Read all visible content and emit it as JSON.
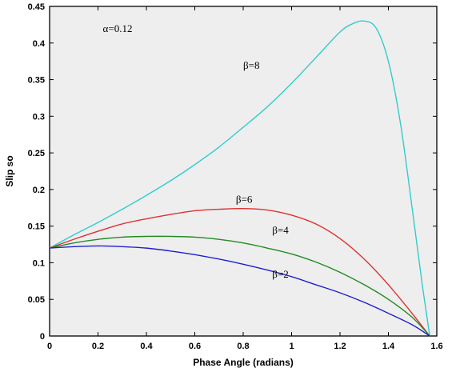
{
  "chart_data": {
    "type": "line",
    "title": "",
    "xlabel": "Phase Angle (radians)",
    "ylabel": "Slip so",
    "xlim": [
      0,
      1.6
    ],
    "ylim": [
      0,
      0.45
    ],
    "xticks": [
      "0",
      "0.2",
      "0.4",
      "0.6",
      "0.8",
      "1",
      "1.2",
      "1.4",
      "1.6"
    ],
    "yticks": [
      "0",
      "0.05",
      "0.1",
      "0.15",
      "0.2",
      "0.25",
      "0.3",
      "0.35",
      "0.4",
      "0.45"
    ],
    "grid": false,
    "annotations": [
      {
        "text": "α=0.12",
        "x": 0.22,
        "y": 0.415
      },
      {
        "text": "β=8",
        "x": 0.8,
        "y": 0.365
      },
      {
        "text": "β=6",
        "x": 0.77,
        "y": 0.182
      },
      {
        "text": "β=4",
        "x": 0.92,
        "y": 0.14
      },
      {
        "text": "β=2",
        "x": 0.92,
        "y": 0.08
      }
    ],
    "series": [
      {
        "name": "β=8",
        "color": "#33cccc",
        "x": [
          0,
          0.1,
          0.2,
          0.3,
          0.4,
          0.5,
          0.6,
          0.7,
          0.8,
          0.9,
          1.0,
          1.1,
          1.2,
          1.25,
          1.3,
          1.35,
          1.4,
          1.45,
          1.5,
          1.54,
          1.5708
        ],
        "y": [
          0.12,
          0.138,
          0.155,
          0.173,
          0.192,
          0.212,
          0.234,
          0.258,
          0.285,
          0.313,
          0.345,
          0.38,
          0.415,
          0.426,
          0.43,
          0.42,
          0.375,
          0.29,
          0.17,
          0.07,
          0.0
        ]
      },
      {
        "name": "β=6",
        "color": "#e03030",
        "x": [
          0,
          0.1,
          0.2,
          0.3,
          0.4,
          0.5,
          0.6,
          0.7,
          0.8,
          0.9,
          1.0,
          1.1,
          1.2,
          1.3,
          1.4,
          1.5,
          1.5708
        ],
        "y": [
          0.12,
          0.132,
          0.143,
          0.153,
          0.16,
          0.166,
          0.171,
          0.173,
          0.174,
          0.172,
          0.165,
          0.153,
          0.133,
          0.105,
          0.07,
          0.03,
          0.0
        ]
      },
      {
        "name": "β=4",
        "color": "#228b22",
        "x": [
          0,
          0.1,
          0.2,
          0.3,
          0.4,
          0.5,
          0.6,
          0.7,
          0.8,
          0.9,
          1.0,
          1.1,
          1.2,
          1.3,
          1.4,
          1.5,
          1.5708
        ],
        "y": [
          0.12,
          0.127,
          0.132,
          0.135,
          0.136,
          0.136,
          0.135,
          0.132,
          0.127,
          0.12,
          0.112,
          0.101,
          0.087,
          0.07,
          0.05,
          0.025,
          0.0
        ]
      },
      {
        "name": "β=2",
        "color": "#1f1fd0",
        "x": [
          0,
          0.1,
          0.2,
          0.3,
          0.4,
          0.5,
          0.6,
          0.7,
          0.8,
          0.9,
          1.0,
          1.1,
          1.2,
          1.3,
          1.4,
          1.5,
          1.5708
        ],
        "y": [
          0.12,
          0.122,
          0.123,
          0.122,
          0.12,
          0.116,
          0.111,
          0.105,
          0.098,
          0.09,
          0.081,
          0.07,
          0.059,
          0.046,
          0.031,
          0.015,
          0.0
        ]
      }
    ]
  }
}
